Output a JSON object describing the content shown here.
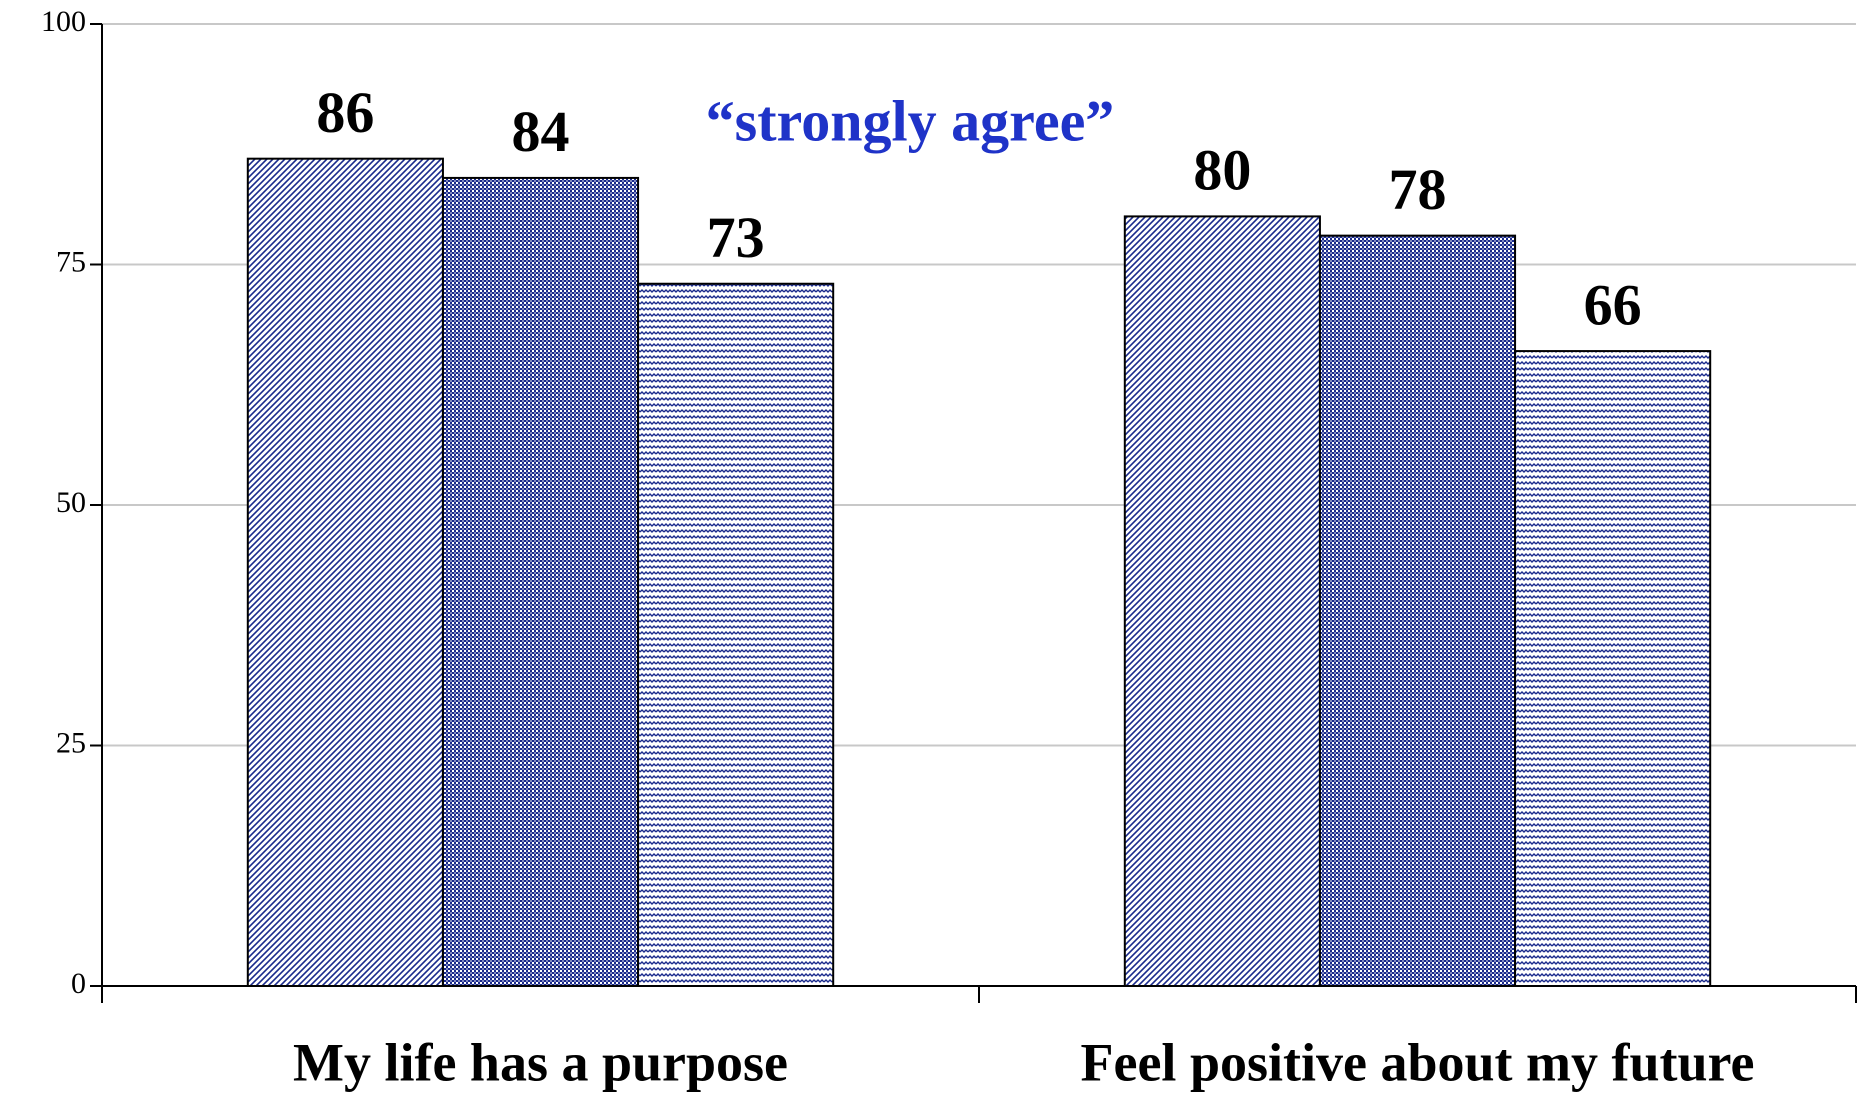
{
  "chart_data": {
    "type": "bar",
    "annotation": "“strongly agree”",
    "categories": [
      "My life has a purpose",
      "Feel positive about my future"
    ],
    "series": [
      {
        "color": "#1a2a8c",
        "pattern": "diagonal",
        "values": [
          86,
          80
        ]
      },
      {
        "color": "#1a2a8c",
        "pattern": "checker",
        "values": [
          84,
          78
        ]
      },
      {
        "color": "#1a2a8c",
        "pattern": "wave",
        "values": [
          73,
          66
        ]
      }
    ],
    "ylim": [
      0,
      100
    ],
    "yticks": [
      0,
      25,
      50,
      75,
      100
    ],
    "grid": true
  }
}
